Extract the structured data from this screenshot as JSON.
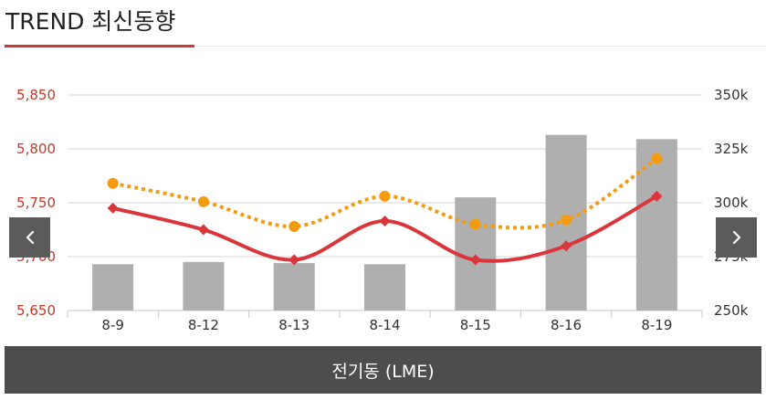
{
  "header": {
    "title": "TREND 최신동향"
  },
  "colors": {
    "accent": "#d0363b",
    "bar": "#afafaf",
    "line_primary": "#d9353a",
    "line_secondary": "#f39c12",
    "left_axis_text": "#c0392b",
    "nav_bg": "#5b5b5b",
    "footer_bg": "#4d4d4d",
    "grid": "#d4d4d4"
  },
  "nav": {
    "prev_icon": "chevron-left-icon",
    "next_icon": "chevron-right-icon"
  },
  "footer": {
    "label": "전기동 (LME)"
  },
  "chart_data": {
    "type": "bar",
    "categories": [
      "8-9",
      "8-12",
      "8-13",
      "8-14",
      "8-15",
      "8-16",
      "8-19"
    ],
    "y_left": {
      "ticks": [
        "5,650",
        "5,700",
        "5,750",
        "5,800",
        "5,850"
      ],
      "min": 5650,
      "max": 5850
    },
    "y_right": {
      "ticks": [
        "250k",
        "275k",
        "300k",
        "325k",
        "350k"
      ],
      "min": 250000,
      "max": 350000
    },
    "grid": true,
    "series": [
      {
        "type": "bar",
        "axis": "right",
        "values": [
          271500,
          272500,
          272000,
          271500,
          302500,
          331500,
          329500
        ]
      },
      {
        "type": "line",
        "axis": "left",
        "style": "solid",
        "values": [
          5745,
          5725,
          5697,
          5733,
          5697,
          5710,
          5756
        ]
      },
      {
        "type": "line",
        "axis": "left",
        "style": "dotted",
        "values": [
          5768,
          5751,
          5728,
          5756,
          5730,
          5734,
          5791
        ]
      }
    ]
  }
}
